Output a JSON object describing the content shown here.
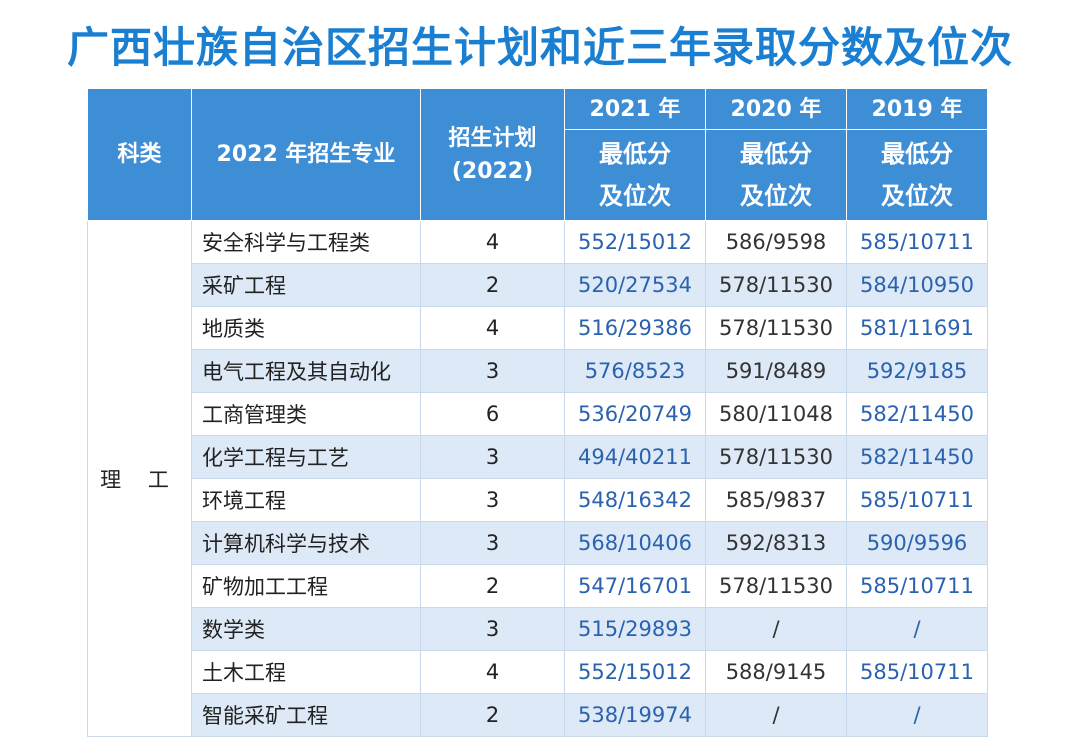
{
  "title": "广西壮族自治区招生计划和近三年录取分数及位次",
  "headers": {
    "category": "科类",
    "major": "2022 年招生专业",
    "plan": "招生计划\n(2022)",
    "y2021": "2021 年",
    "y2020": "2020 年",
    "y2019": "2019 年",
    "min_score": "最低分\n及位次"
  },
  "category_label": "理 工",
  "rows": [
    {
      "major": "安全科学与工程类",
      "plan": "4",
      "y2021": "552/15012",
      "y2020": "586/9598",
      "y2019": "585/10711"
    },
    {
      "major": "采矿工程",
      "plan": "2",
      "y2021": "520/27534",
      "y2020": "578/11530",
      "y2019": "584/10950"
    },
    {
      "major": "地质类",
      "plan": "4",
      "y2021": "516/29386",
      "y2020": "578/11530",
      "y2019": "581/11691"
    },
    {
      "major": "电气工程及其自动化",
      "plan": "3",
      "y2021": "576/8523",
      "y2020": "591/8489",
      "y2019": "592/9185"
    },
    {
      "major": "工商管理类",
      "plan": "6",
      "y2021": "536/20749",
      "y2020": "580/11048",
      "y2019": "582/11450"
    },
    {
      "major": "化学工程与工艺",
      "plan": "3",
      "y2021": "494/40211",
      "y2020": "578/11530",
      "y2019": "582/11450"
    },
    {
      "major": "环境工程",
      "plan": "3",
      "y2021": "548/16342",
      "y2020": "585/9837",
      "y2019": "585/10711"
    },
    {
      "major": "计算机科学与技术",
      "plan": "3",
      "y2021": "568/10406",
      "y2020": "592/8313",
      "y2019": "590/9596"
    },
    {
      "major": "矿物加工工程",
      "plan": "2",
      "y2021": "547/16701",
      "y2020": "578/11530",
      "y2019": "585/10711"
    },
    {
      "major": "数学类",
      "plan": "3",
      "y2021": "515/29893",
      "y2020": "/",
      "y2019": "/"
    },
    {
      "major": "土木工程",
      "plan": "4",
      "y2021": "552/15012",
      "y2020": "588/9145",
      "y2019": "585/10711"
    },
    {
      "major": "智能采矿工程",
      "plan": "2",
      "y2021": "538/19974",
      "y2020": "/",
      "y2019": "/"
    }
  ]
}
